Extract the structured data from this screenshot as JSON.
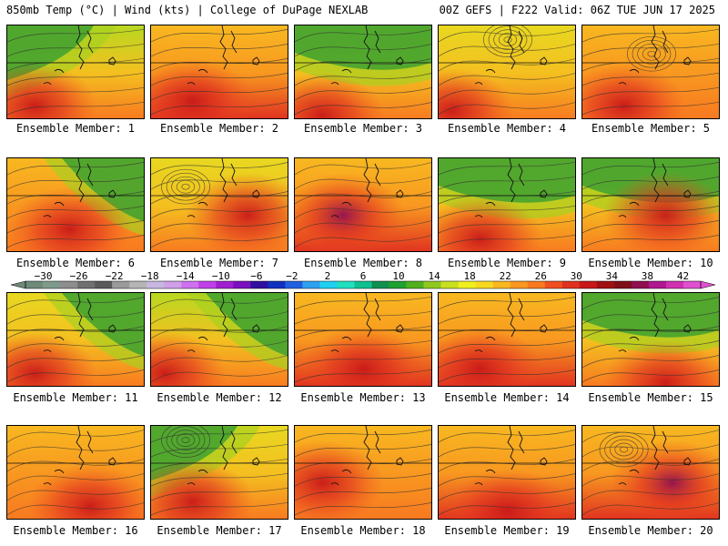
{
  "header": {
    "left": "850mb Temp (°C) | Wind (kts) | College of DuPage NEXLAB",
    "right": "00Z GEFS | F222 Valid: 06Z TUE JUN 17 2025"
  },
  "panel_label_prefix": "Ensemble Member: ",
  "members": [
    {
      "label": "Ensemble Member: 1",
      "warm": 0.35,
      "hot_spot": [
        0.2,
        0.85
      ],
      "cool_corner": "top-left",
      "closed_low": null
    },
    {
      "label": "Ensemble Member: 2",
      "warm": 0.75,
      "hot_spot": [
        0.3,
        0.8
      ],
      "cool_corner": "none",
      "closed_low": null
    },
    {
      "label": "Ensemble Member: 3",
      "warm": 0.25,
      "hot_spot": [
        0.2,
        0.95
      ],
      "cool_corner": "top",
      "closed_low": null
    },
    {
      "label": "Ensemble Member: 4",
      "warm": 0.55,
      "hot_spot": [
        0.1,
        0.9
      ],
      "cool_corner": "none",
      "closed_low": [
        0.5,
        0.15
      ]
    },
    {
      "label": "Ensemble Member: 5",
      "warm": 0.7,
      "hot_spot": [
        0.3,
        0.85
      ],
      "cool_corner": "none",
      "closed_low": [
        0.5,
        0.3
      ]
    },
    {
      "label": "Ensemble Member: 6",
      "warm": 0.7,
      "hot_spot": [
        0.45,
        0.75
      ],
      "cool_corner": "top-right",
      "closed_low": null
    },
    {
      "label": "Ensemble Member: 7",
      "warm": 0.45,
      "hot_spot": [
        0.7,
        0.6
      ],
      "cool_corner": "none",
      "closed_low": [
        0.25,
        0.3
      ]
    },
    {
      "label": "Ensemble Member: 8",
      "warm": 0.85,
      "hot_spot": [
        0.35,
        0.6
      ],
      "cool_corner": "none",
      "closed_low": null
    },
    {
      "label": "Ensemble Member: 9",
      "warm": 0.5,
      "hot_spot": [
        0.3,
        0.85
      ],
      "cool_corner": "top",
      "closed_low": null
    },
    {
      "label": "Ensemble Member: 10",
      "warm": 0.4,
      "hot_spot": [
        0.6,
        0.6
      ],
      "cool_corner": "top",
      "closed_low": null
    },
    {
      "label": "Ensemble Member: 11",
      "warm": 0.45,
      "hot_spot": [
        0.2,
        0.85
      ],
      "cool_corner": "top-right",
      "closed_low": null
    },
    {
      "label": "Ensemble Member: 12",
      "warm": 0.4,
      "hot_spot": [
        0.1,
        0.85
      ],
      "cool_corner": "top-right",
      "closed_low": null
    },
    {
      "label": "Ensemble Member: 13",
      "warm": 0.75,
      "hot_spot": [
        0.5,
        0.8
      ],
      "cool_corner": "none",
      "closed_low": null
    },
    {
      "label": "Ensemble Member: 14",
      "warm": 0.75,
      "hot_spot": [
        0.3,
        0.8
      ],
      "cool_corner": "none",
      "closed_low": null
    },
    {
      "label": "Ensemble Member: 15",
      "warm": 0.5,
      "hot_spot": [
        0.6,
        0.95
      ],
      "cool_corner": "top",
      "closed_low": null
    },
    {
      "label": "Ensemble Member: 16",
      "warm": 0.7,
      "hot_spot": [
        0.6,
        0.85
      ],
      "cool_corner": "none",
      "closed_low": null
    },
    {
      "label": "Ensemble Member: 17",
      "warm": 0.6,
      "hot_spot": [
        0.3,
        0.8
      ],
      "cool_corner": "top-left",
      "closed_low": [
        0.25,
        0.15
      ]
    },
    {
      "label": "Ensemble Member: 18",
      "warm": 0.7,
      "hot_spot": [
        0.2,
        0.6
      ],
      "cool_corner": "none",
      "closed_low": null
    },
    {
      "label": "Ensemble Member: 19",
      "warm": 0.75,
      "hot_spot": [
        0.5,
        0.9
      ],
      "cool_corner": "none",
      "closed_low": null
    },
    {
      "label": "Ensemble Member: 20",
      "warm": 0.85,
      "hot_spot": [
        0.65,
        0.6
      ],
      "cool_corner": "none",
      "closed_low": [
        0.3,
        0.25
      ]
    }
  ],
  "colorbar": {
    "label_values": [
      -30,
      -26,
      -22,
      -18,
      -14,
      -10,
      -6,
      -2,
      2,
      6,
      10,
      14,
      18,
      22,
      26,
      30,
      34,
      38,
      42
    ],
    "label_texts": [
      "−30",
      "−26",
      "−22",
      "−18",
      "−14",
      "−10",
      "−6",
      "−2",
      "2",
      "6",
      "10",
      "14",
      "18",
      "22",
      "26",
      "30",
      "34",
      "38",
      "42"
    ],
    "min": -32,
    "max": 44,
    "step": 2,
    "colors": [
      "#6e8b7a",
      "#7f9a8c",
      "#8e8e8e",
      "#707070",
      "#5a5a5a",
      "#9a9a9a",
      "#b5b5b5",
      "#c8b8e0",
      "#cfa0e8",
      "#d070f0",
      "#c040e8",
      "#a020d0",
      "#7a10c0",
      "#3010a0",
      "#1030c0",
      "#2060e0",
      "#30a0f0",
      "#20d0f0",
      "#20e0c0",
      "#10c090",
      "#109050",
      "#20a030",
      "#50b020",
      "#90c820",
      "#c8e020",
      "#f0f020",
      "#f8d820",
      "#f8b820",
      "#f89820",
      "#f87820",
      "#f05020",
      "#e03020",
      "#c81818",
      "#a01010",
      "#801018",
      "#901050",
      "#b01890",
      "#d030b0",
      "#e050d0"
    ]
  }
}
